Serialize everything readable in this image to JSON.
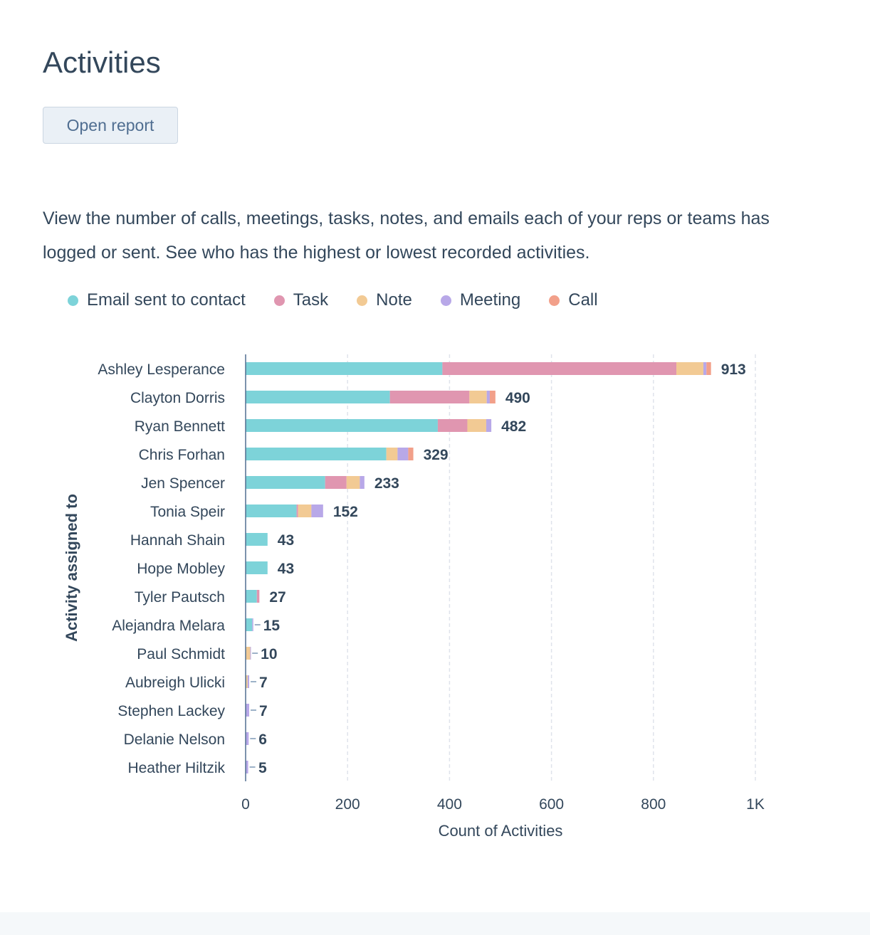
{
  "page": {
    "title": "Activities",
    "open_report_label": "Open report",
    "description": "View the number of calls, meetings, tasks, notes, and emails each of your reps or teams has logged or sent. See who has the highest or lowest recorded activities."
  },
  "legend": [
    {
      "label": "Email sent to contact",
      "color": "#7dd3d9"
    },
    {
      "label": "Task",
      "color": "#e096b0"
    },
    {
      "label": "Note",
      "color": "#f2ca94"
    },
    {
      "label": "Meeting",
      "color": "#b8a8e8"
    },
    {
      "label": "Call",
      "color": "#f2a08a"
    }
  ],
  "chart_data": {
    "type": "bar",
    "orientation": "horizontal",
    "stacked": true,
    "xlabel": "Count of Activities",
    "ylabel": "Activity assigned to",
    "xlim": [
      0,
      1000
    ],
    "xticks": [
      0,
      200,
      400,
      600,
      800,
      1000
    ],
    "xtick_labels": [
      "0",
      "200",
      "400",
      "600",
      "800",
      "1K"
    ],
    "grid": true,
    "legend_position": "top-left",
    "categories": [
      "Ashley Lesperance",
      "Clayton Dorris",
      "Ryan Bennett",
      "Chris Forhan",
      "Jen Spencer",
      "Tonia Speir",
      "Hannah Shain",
      "Hope Mobley",
      "Tyler Pautsch",
      "Alejandra Melara",
      "Paul Schmidt",
      "Aubreigh Ulicki",
      "Stephen Lackey",
      "Delanie Nelson",
      "Heather Hiltzik"
    ],
    "totals": [
      913,
      490,
      482,
      329,
      233,
      152,
      43,
      43,
      27,
      15,
      10,
      7,
      7,
      6,
      5
    ],
    "series": [
      {
        "name": "Email sent to contact",
        "color": "#7dd3d9",
        "values": [
          386,
          283,
          377,
          276,
          156,
          100,
          43,
          43,
          22,
          13,
          0,
          1,
          0,
          0,
          0
        ]
      },
      {
        "name": "Task",
        "color": "#e096b0",
        "values": [
          459,
          156,
          58,
          0,
          42,
          3,
          0,
          0,
          5,
          0,
          0,
          0,
          0,
          0,
          0
        ]
      },
      {
        "name": "Note",
        "color": "#f2ca94",
        "values": [
          53,
          34,
          37,
          22,
          26,
          26,
          0,
          0,
          0,
          0,
          9,
          3,
          0,
          0,
          0
        ]
      },
      {
        "name": "Meeting",
        "color": "#b8a8e8",
        "values": [
          6,
          6,
          10,
          21,
          9,
          23,
          0,
          0,
          0,
          2,
          1,
          3,
          7,
          6,
          5
        ]
      },
      {
        "name": "Call",
        "color": "#f2a08a",
        "values": [
          9,
          11,
          0,
          10,
          0,
          0,
          0,
          0,
          0,
          0,
          0,
          0,
          0,
          0,
          0
        ]
      }
    ]
  }
}
